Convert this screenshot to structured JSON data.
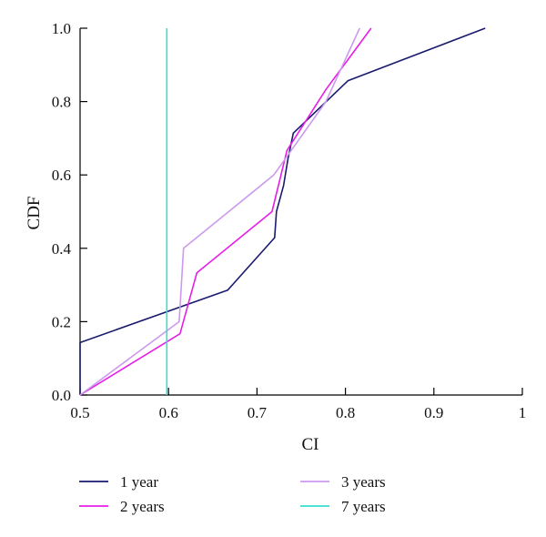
{
  "chart_data": {
    "type": "line",
    "xlabel": "CI",
    "ylabel": "CDF",
    "xlim": [
      0.5,
      1.0
    ],
    "ylim": [
      0.0,
      1.0
    ],
    "xticks": [
      0.5,
      0.6,
      0.7,
      0.8,
      0.9,
      1.0
    ],
    "xtick_labels": [
      "0.5",
      "0.6",
      "0.7",
      "0.8",
      "0.9",
      "1"
    ],
    "yticks": [
      0.0,
      0.2,
      0.4,
      0.6,
      0.8,
      1.0
    ],
    "ytick_labels": [
      "0.0",
      "0.2",
      "0.4",
      "0.6",
      "0.8",
      "1.0"
    ],
    "grid": false,
    "legend_position": "bottom",
    "series": [
      {
        "name": "1 year",
        "color": "#1a1a6e",
        "x": [
          0.5,
          0.5,
          0.667,
          0.72,
          0.722,
          0.73,
          0.735,
          0.741,
          0.803,
          0.958
        ],
        "y": [
          0.0,
          0.143,
          0.286,
          0.429,
          0.5,
          0.571,
          0.643,
          0.714,
          0.857,
          1.0
        ]
      },
      {
        "name": "2 years",
        "color": "#e61ee6",
        "x": [
          0.5,
          0.613,
          0.632,
          0.717,
          0.734,
          0.778,
          0.829
        ],
        "y": [
          0.0,
          0.167,
          0.333,
          0.5,
          0.667,
          0.833,
          1.0
        ]
      },
      {
        "name": "3 years",
        "color": "#cc99ee",
        "x": [
          0.5,
          0.612,
          0.617,
          0.719,
          0.778,
          0.816
        ],
        "y": [
          0.0,
          0.2,
          0.4,
          0.6,
          0.8,
          1.0
        ]
      },
      {
        "name": "7 years",
        "color": "#33e0d0",
        "x": [
          0.598,
          0.598
        ],
        "y": [
          0.0,
          1.0
        ]
      }
    ]
  }
}
